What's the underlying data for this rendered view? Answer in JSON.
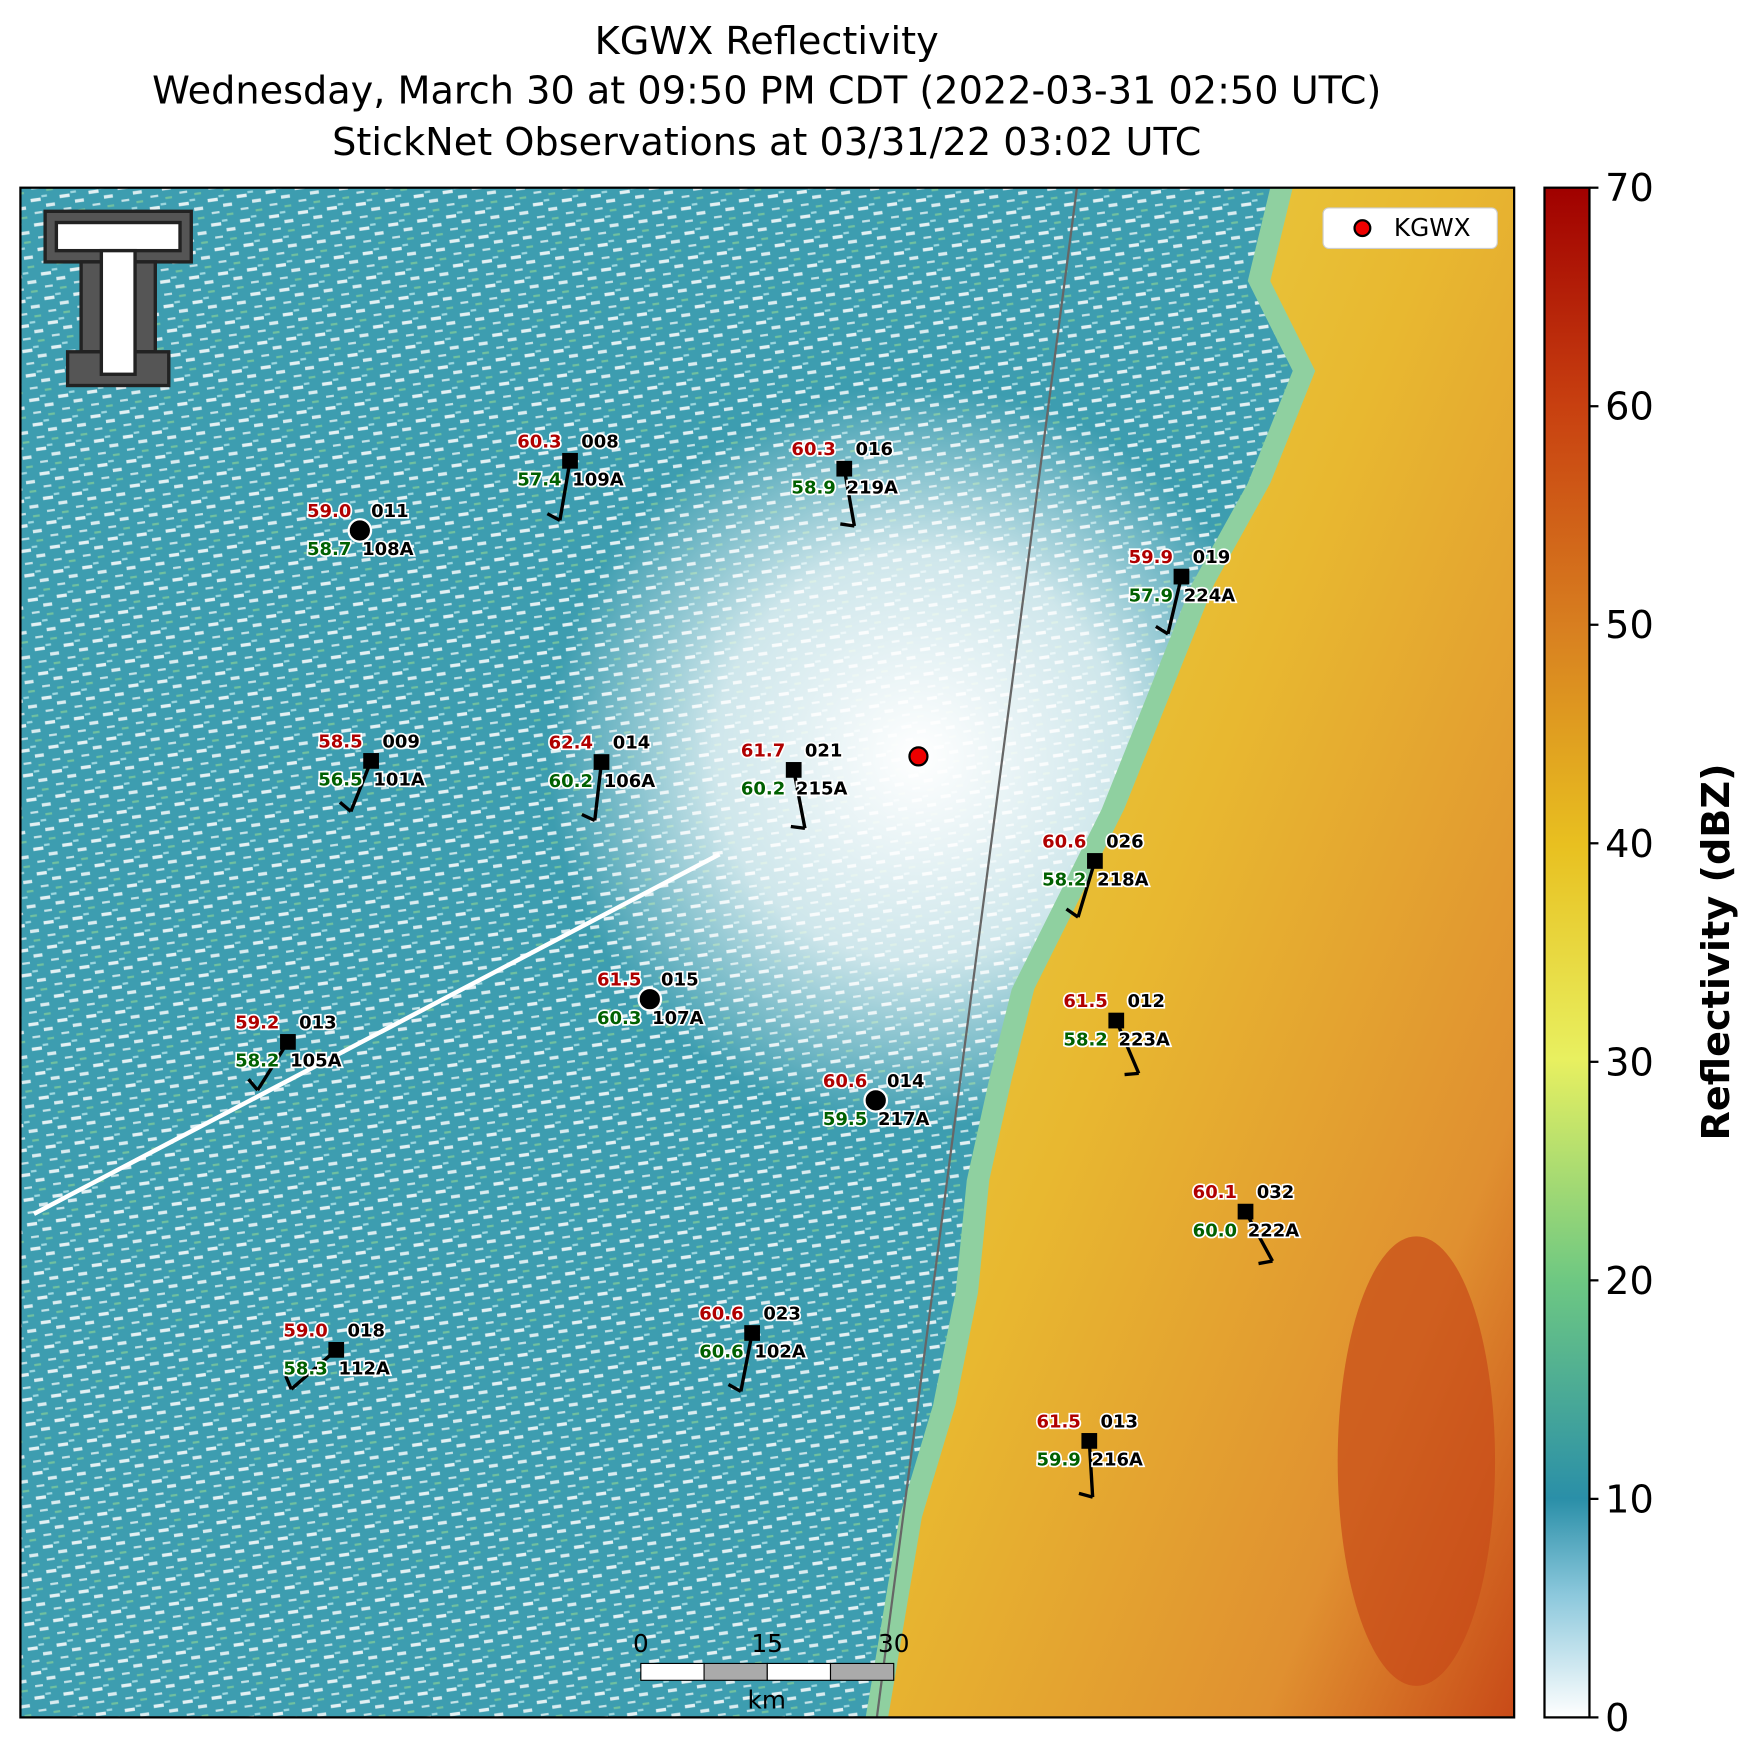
{
  "title_lines": [
    "KGWX Reflectivity",
    "Wednesday, March 30 at 09:50 PM CDT (2022-03-31 02:50 UTC)",
    "StickNet Observations at 03/31/22 03:02 UTC"
  ],
  "legend": {
    "label": "KGWX"
  },
  "stations": [
    {
      "temperature": "59.0",
      "station_id": "011",
      "dewpoint": "58.7",
      "label": "108A"
    },
    {
      "temperature": "60.3",
      "station_id": "008",
      "dewpoint": "57.4",
      "label": "109A"
    },
    {
      "temperature": "60.3",
      "station_id": "016",
      "dewpoint": "58.9",
      "label": "219A"
    },
    {
      "temperature": "59.9",
      "station_id": "019",
      "dewpoint": "57.9",
      "label": "224A"
    },
    {
      "temperature": "58.5",
      "station_id": "009",
      "dewpoint": "56.5",
      "label": "101A"
    },
    {
      "temperature": "62.4",
      "station_id": "014",
      "dewpoint": "60.2",
      "label": "106A"
    },
    {
      "temperature": "61.7",
      "station_id": "021",
      "dewpoint": "60.2",
      "label": "215A"
    },
    {
      "temperature": "60.6",
      "station_id": "026",
      "dewpoint": "58.2",
      "label": "218A"
    },
    {
      "temperature": "61.5",
      "station_id": "015",
      "dewpoint": "60.3",
      "label": "107A"
    },
    {
      "temperature": "59.2",
      "station_id": "013",
      "dewpoint": "58.2",
      "label": "105A"
    },
    {
      "temperature": "61.5",
      "station_id": "012",
      "dewpoint": "58.2",
      "label": "223A"
    },
    {
      "temperature": "60.6",
      "station_id": "014",
      "dewpoint": "59.5",
      "label": "217A"
    },
    {
      "temperature": "60.1",
      "station_id": "032",
      "dewpoint": "60.0",
      "label": "222A"
    },
    {
      "temperature": "59.0",
      "station_id": "018",
      "dewpoint": "58.3",
      "label": "112A"
    },
    {
      "temperature": "60.6",
      "station_id": "023",
      "dewpoint": "60.6",
      "label": "102A"
    },
    {
      "temperature": "61.5",
      "station_id": "013",
      "dewpoint": "59.9",
      "label": "216A"
    }
  ],
  "colorbar": {
    "label": "Reflectivity (dBZ)",
    "lim": [
      0,
      70
    ],
    "ticks": [
      0,
      10,
      20,
      30,
      40,
      50,
      60,
      70
    ]
  },
  "scale_bar": {
    "ticks": [
      0,
      15,
      30
    ],
    "unit": "km"
  }
}
